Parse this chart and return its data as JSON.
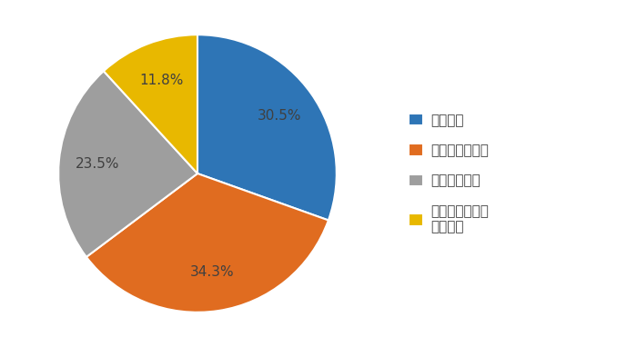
{
  "labels": [
    "よく使う",
    "使うこともある",
    "全く使わない",
    "パソコンを持っ\nていない"
  ],
  "legend_labels": [
    "よく使う",
    "使うこともある",
    "全く使わない",
    "パソコンを持っ\nていない"
  ],
  "values": [
    30.5,
    34.3,
    23.5,
    11.8
  ],
  "colors": [
    "#2e75b6",
    "#e06c20",
    "#9e9e9e",
    "#e8b800"
  ],
  "startangle": 90,
  "background_color": "#ffffff",
  "text_color": "#404040",
  "fontsize_pct": 11,
  "fontsize_legend": 11
}
